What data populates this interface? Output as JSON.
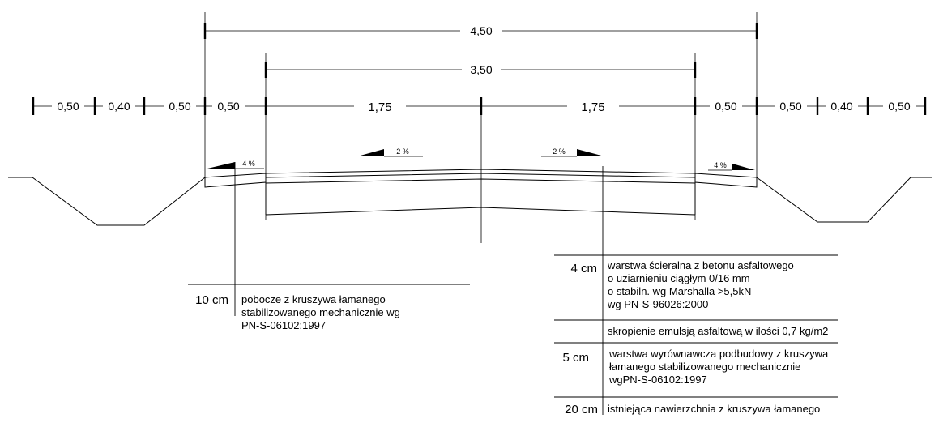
{
  "dimensions": {
    "overall_4_50": "4,50",
    "carriageway_3_50": "3,50",
    "half_left": "1,75",
    "half_right": "1,75",
    "left_segments": [
      "0,50",
      "0,40",
      "0,50",
      "0,50"
    ],
    "right_segments": [
      "0,50",
      "0,50",
      "0,40",
      "0,50"
    ]
  },
  "slopes": {
    "shoulder_left": "4 %",
    "lane_left": "2 %",
    "lane_right": "2 %",
    "shoulder_right": "4 %"
  },
  "layers_shoulder": [
    {
      "thickness": "10 cm",
      "description": [
        "pobocze z kruszywa łamanego",
        "stabilizowanego mechanicznie wg",
        "PN-S-06102:1997"
      ]
    }
  ],
  "layers_pavement": [
    {
      "thickness": "4 cm",
      "description": [
        "warstwa ścieralna z betonu asfaltowego",
        "o uziarnieniu ciągłym 0/16 mm",
        "o stabiln. wg Marshalla >5,5kN",
        "wg PN-S-96026:2000"
      ]
    },
    {
      "thickness": "",
      "description": [
        "skropienie emulsją asfaltową w ilości 0,7 kg/m2"
      ]
    },
    {
      "thickness": "5 cm",
      "description": [
        "warstwa wyrównawcza podbudowy z kruszywa",
        "łamanego stabilizowanego mechanicznie",
        "wgPN-S-06102:1997"
      ]
    },
    {
      "thickness": "20 cm",
      "description": [
        "istniejąca nawierzchnia z kruszywa łamanego"
      ]
    }
  ]
}
